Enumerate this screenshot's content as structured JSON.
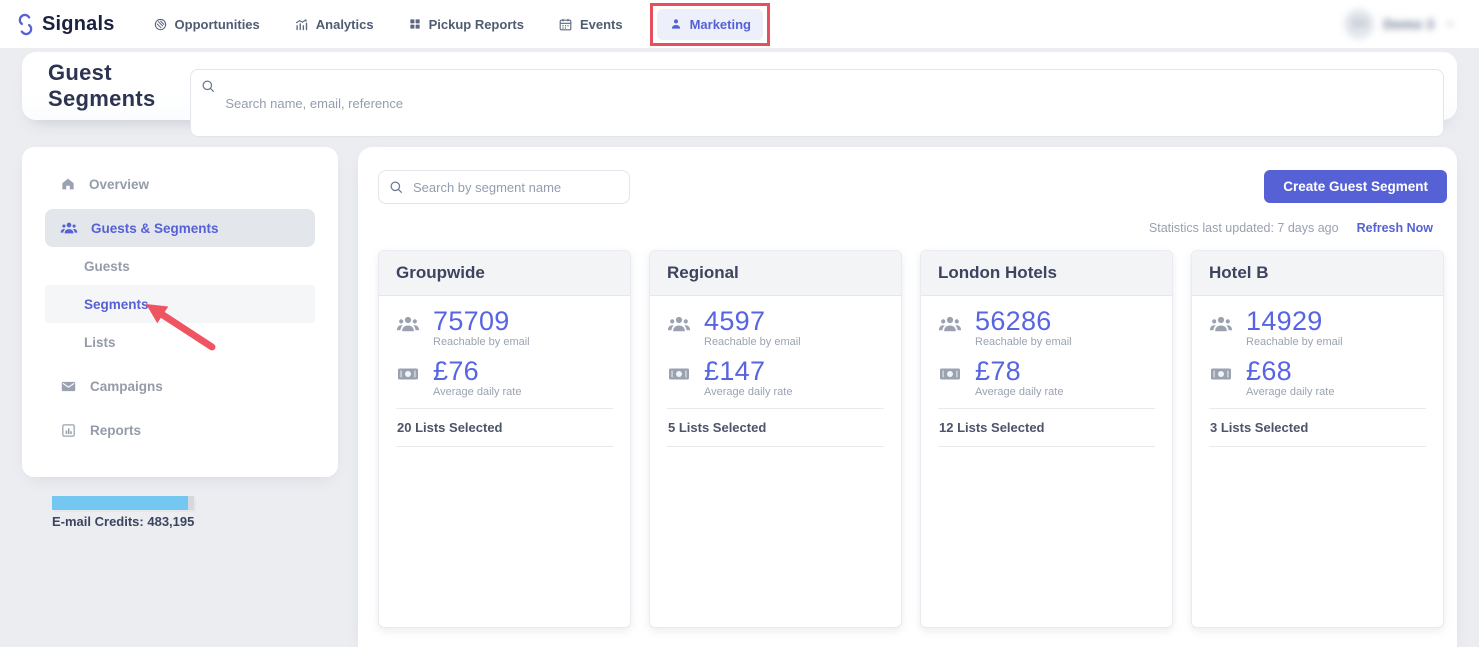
{
  "colors": {
    "accent": "#5661d6",
    "annotation_red": "#e4505d",
    "credits_bar": "#73c7f1"
  },
  "nav": {
    "brand": "Signals",
    "items": [
      {
        "label": "Opportunities",
        "icon": "opportunities-icon"
      },
      {
        "label": "Analytics",
        "icon": "analytics-icon"
      },
      {
        "label": "Pickup Reports",
        "icon": "pickup-reports-icon"
      },
      {
        "label": "Events",
        "icon": "events-icon"
      },
      {
        "label": "Marketing",
        "icon": "marketing-icon",
        "active": true
      }
    ],
    "user": {
      "initials": "D3",
      "name": "Demo 3"
    }
  },
  "header": {
    "title": "Guest Segments",
    "search_placeholder": "Search name, email, reference"
  },
  "sidebar": {
    "items": [
      {
        "label": "Overview",
        "icon": "home-icon"
      },
      {
        "label": "Guests & Segments",
        "icon": "people-icon",
        "active": true
      },
      {
        "label": "Guests",
        "indent": true
      },
      {
        "label": "Segments",
        "indent": true,
        "highlighted": true
      },
      {
        "label": "Lists",
        "indent": true
      },
      {
        "label": "Campaigns",
        "icon": "envelope-icon"
      },
      {
        "label": "Reports",
        "icon": "bar-chart-icon"
      }
    ],
    "email_credits": {
      "label": "E-mail Credits: 483,195",
      "fill_percent": 96
    }
  },
  "main": {
    "segment_search_placeholder": "Search by segment name",
    "create_button": "Create Guest Segment",
    "stats_updated": "Statistics last updated: 7 days ago",
    "refresh_link": "Refresh Now",
    "cards": [
      {
        "title": "Groupwide",
        "reachable_value": "75709",
        "reachable_label": "Reachable by email",
        "adr_value": "£76",
        "adr_label": "Average daily rate",
        "lists_selected": "20 Lists Selected"
      },
      {
        "title": "Regional",
        "reachable_value": "4597",
        "reachable_label": "Reachable by email",
        "adr_value": "£147",
        "adr_label": "Average daily rate",
        "lists_selected": "5 Lists Selected"
      },
      {
        "title": "London Hotels",
        "reachable_value": "56286",
        "reachable_label": "Reachable by email",
        "adr_value": "£78",
        "adr_label": "Average daily rate",
        "lists_selected": "12 Lists Selected"
      },
      {
        "title": "Hotel B",
        "reachable_value": "14929",
        "reachable_label": "Reachable by email",
        "adr_value": "£68",
        "adr_label": "Average daily rate",
        "lists_selected": "3 Lists Selected"
      }
    ]
  }
}
